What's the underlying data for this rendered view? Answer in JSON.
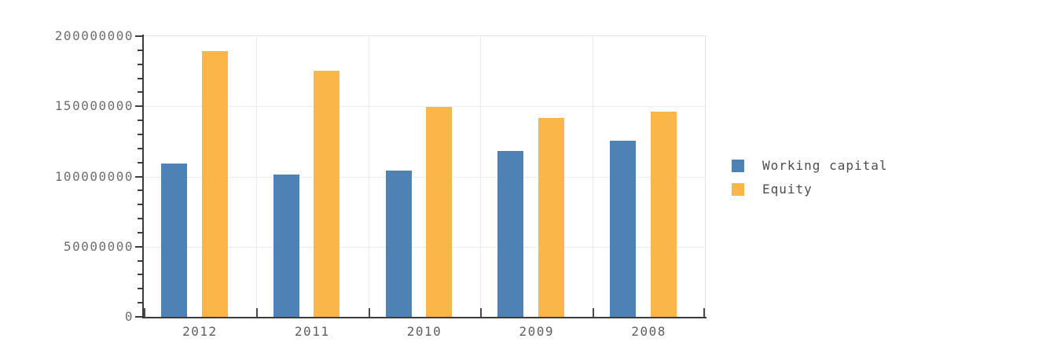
{
  "chart_data": {
    "type": "bar",
    "title": "",
    "xlabel": "",
    "ylabel": "",
    "categories": [
      "2012",
      "2011",
      "2010",
      "2009",
      "2008"
    ],
    "series": [
      {
        "name": "Working capital",
        "color": "#4E82B4",
        "values": [
          109500000,
          101500000,
          104000000,
          118500000,
          125500000
        ]
      },
      {
        "name": "Equity",
        "color": "#FBB649",
        "values": [
          189500000,
          175500000,
          149500000,
          142000000,
          146000000
        ]
      }
    ],
    "ylim": [
      0,
      200000000
    ],
    "y_major_step": 50000000,
    "y_minor_step": 10000000,
    "y_tick_labels": [
      "0",
      "50000000",
      "100000000",
      "150000000",
      "200000000"
    ],
    "grid": true,
    "legend_position": "right"
  },
  "styles": {
    "background": "#ffffff",
    "axis_color": "#3d3d3d",
    "grid_color": "#ececec",
    "plot_border_color": "#e4e4e4",
    "axis_label_color": "#6e6e6e",
    "x_label_color": "#5f5f5f",
    "legend_text_color": "#4d4d4d"
  }
}
